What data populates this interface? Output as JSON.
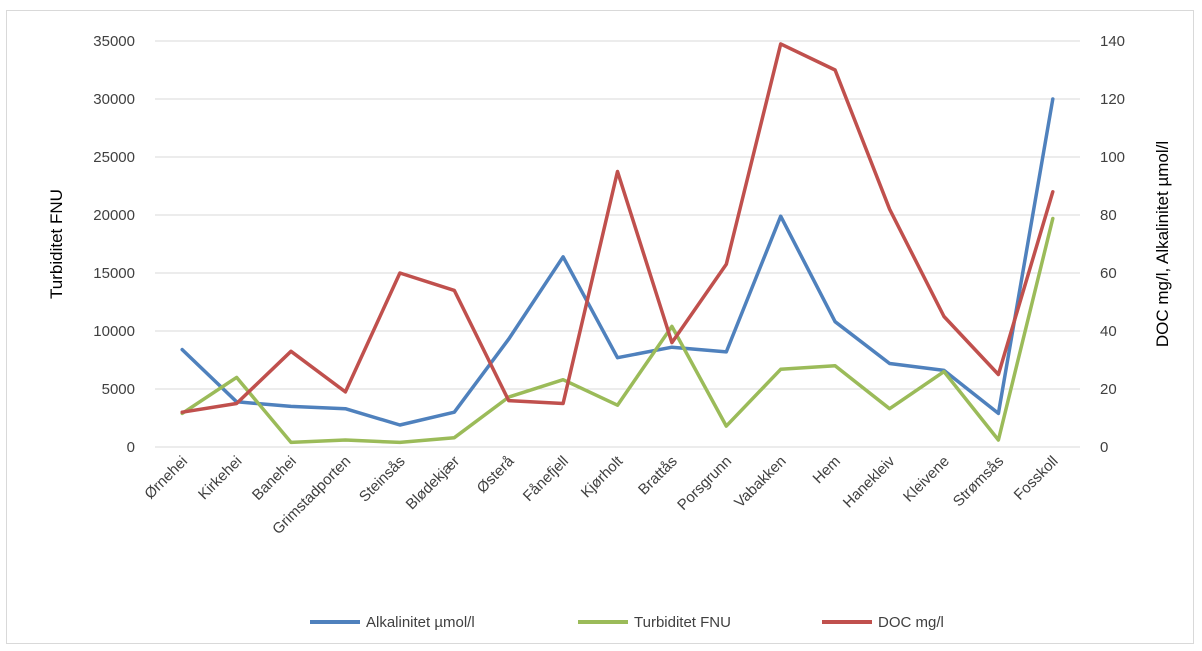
{
  "chart_data": {
    "type": "line",
    "title": "",
    "categories": [
      "Ørnehei",
      "Kirkehei",
      "Banehei",
      "Grimstadporten",
      "Steinsås",
      "Blødekjær",
      "Østerå",
      "Fånefjell",
      "Kjørholt",
      "Brattås",
      "Porsgrunn",
      "Vabakken",
      "Hem",
      "Hanekleiv",
      "Kleivene",
      "Strømsås",
      "Fosskoll"
    ],
    "y_left": {
      "label": "Turbiditet FNU",
      "ylim": [
        0,
        35000
      ],
      "ticks": [
        "0",
        "5000",
        "10000",
        "15000",
        "20000",
        "25000",
        "30000",
        "35000"
      ]
    },
    "y_right": {
      "label": "DOC mg/l, Alkalinitet µmol/l",
      "ylim": [
        0,
        140
      ],
      "ticks": [
        "0",
        "20",
        "40",
        "60",
        "80",
        "100",
        "120",
        "140"
      ]
    },
    "grid": true,
    "legend_position": "bottom",
    "series": [
      {
        "name": "Alkalinitet µmol/l",
        "axis": "left",
        "color": "#4f81bd",
        "values": [
          8400,
          3900,
          3500,
          3300,
          1900,
          3000,
          9300,
          16400,
          7700,
          8600,
          8200,
          19900,
          10800,
          7200,
          6600,
          2900,
          30000
        ]
      },
      {
        "name": "Turbiditet FNU",
        "axis": "left",
        "color": "#9bbb59",
        "values": [
          2900,
          6000,
          400,
          600,
          400,
          800,
          4300,
          5800,
          3600,
          10400,
          1800,
          6700,
          7000,
          3300,
          6500,
          600,
          19700
        ]
      },
      {
        "name": "DOC mg/l",
        "axis": "right",
        "color": "#c0504d",
        "values": [
          12,
          15,
          33,
          19,
          60,
          54,
          16,
          15,
          95,
          36,
          63,
          139,
          130,
          82,
          45,
          25,
          88
        ]
      }
    ]
  }
}
